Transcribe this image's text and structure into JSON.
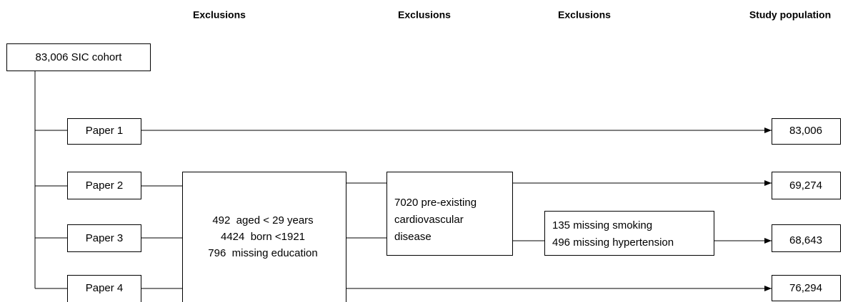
{
  "headers": [
    "Exclusions",
    "Exclusions",
    "Exclusions",
    "Study population"
  ],
  "cohort": "83,006 SIC cohort",
  "papers": [
    "Paper 1",
    "Paper 2",
    "Paper 3",
    "Paper 4"
  ],
  "exclusions": [
    [
      "492  aged < 29 years",
      "4424  born <1921",
      "796  missing education"
    ],
    [
      "7020 pre-existing",
      "cardiovascular",
      "disease"
    ],
    [
      "135 missing smoking",
      "496 missing hypertension"
    ]
  ],
  "populations": [
    "83,006",
    "69,274",
    "68,643",
    "76,294"
  ]
}
